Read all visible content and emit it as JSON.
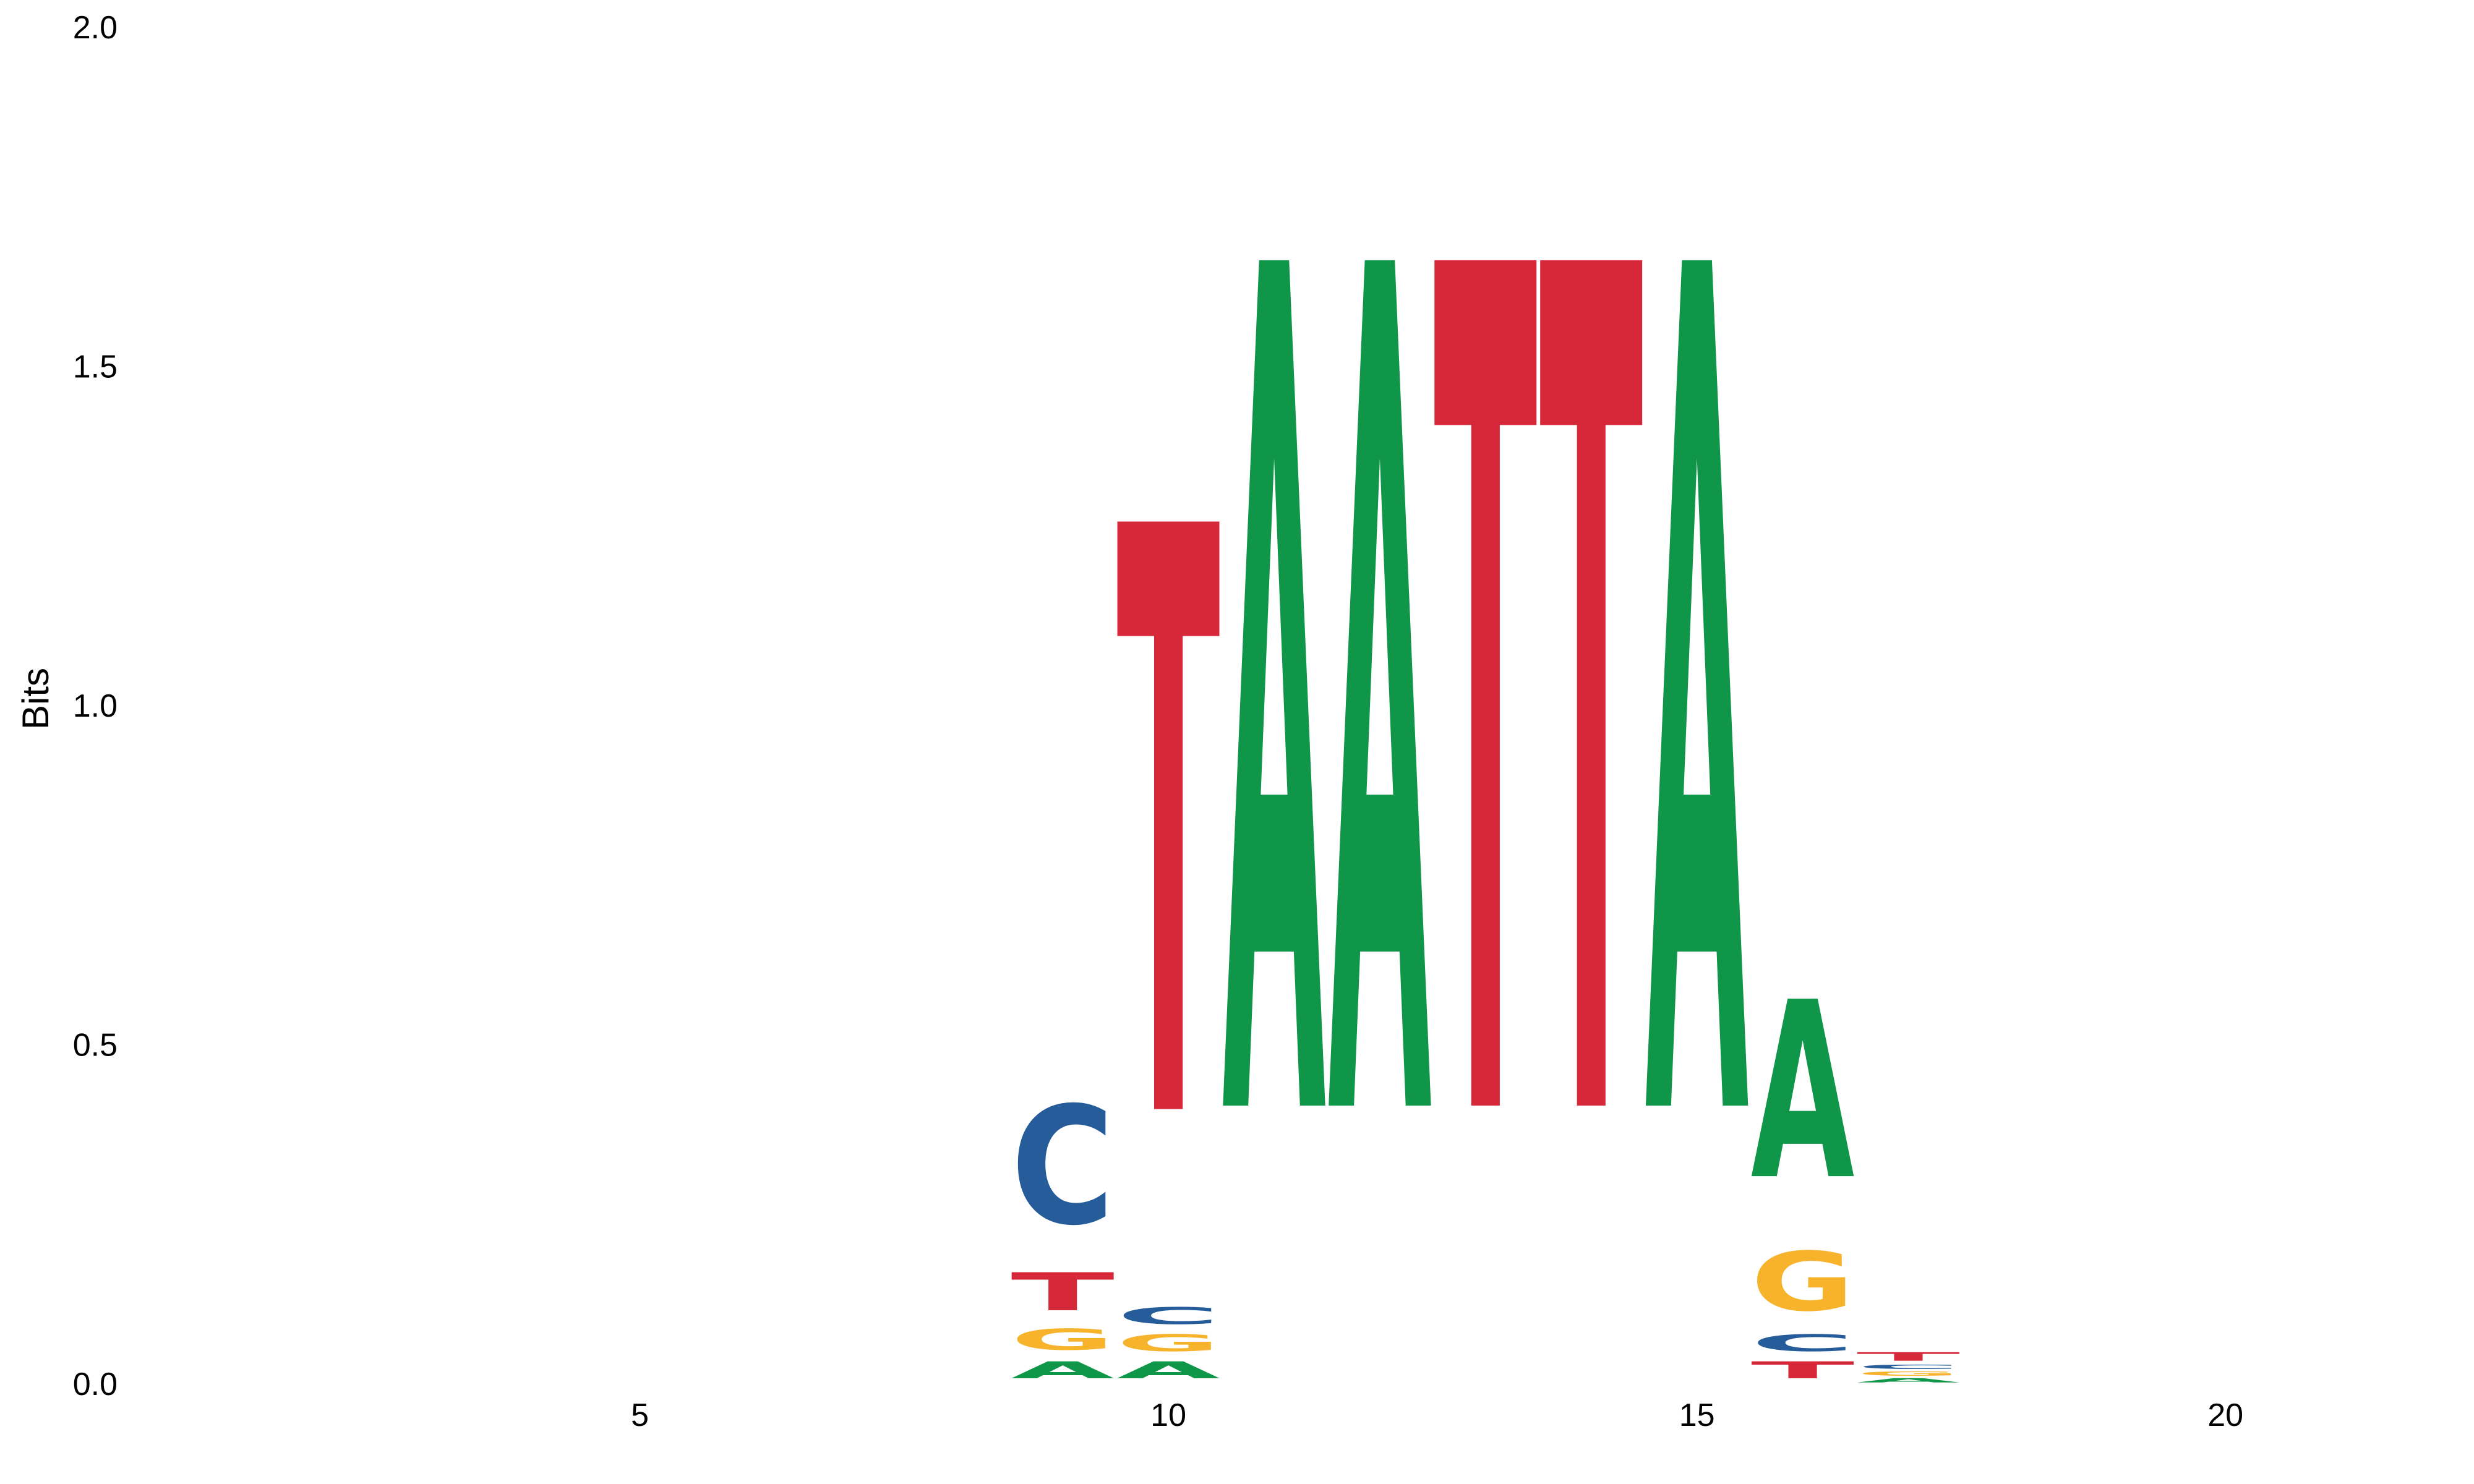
{
  "chart_data": {
    "type": "sequence-logo",
    "ylabel": "Bits",
    "ylim": [
      0,
      2
    ],
    "yticks": [
      "0.0",
      "0.5",
      "1.0",
      "1.5",
      "2.0"
    ],
    "xlim": [
      0,
      22
    ],
    "xticks": [
      "5",
      "10",
      "15",
      "20"
    ],
    "xtick_values": [
      5,
      10,
      15,
      20
    ],
    "ytick_values": [
      0,
      0.5,
      1.0,
      1.5,
      2.0
    ],
    "colors": {
      "A": "#109648",
      "C": "#255C99",
      "G": "#F7B32B",
      "T": "#D62839"
    },
    "positions": [
      {
        "pos": 9,
        "stack": [
          {
            "letter": "A",
            "bits": 0.04
          },
          {
            "letter": "G",
            "bits": 0.05
          },
          {
            "letter": "T",
            "bits": 0.09
          },
          {
            "letter": "C",
            "bits": 0.28
          }
        ]
      },
      {
        "pos": 10,
        "stack": [
          {
            "letter": "A",
            "bits": 0.04
          },
          {
            "letter": "G",
            "bits": 0.04
          },
          {
            "letter": "C",
            "bits": 0.04
          },
          {
            "letter": "T",
            "bits": 1.39
          }
        ]
      },
      {
        "pos": 11,
        "stack": [
          {
            "letter": "A",
            "bits": 2.0
          }
        ]
      },
      {
        "pos": 12,
        "stack": [
          {
            "letter": "A",
            "bits": 2.0
          }
        ]
      },
      {
        "pos": 13,
        "stack": [
          {
            "letter": "T",
            "bits": 2.0
          }
        ]
      },
      {
        "pos": 14,
        "stack": [
          {
            "letter": "T",
            "bits": 2.0
          }
        ]
      },
      {
        "pos": 15,
        "stack": [
          {
            "letter": "A",
            "bits": 2.0
          }
        ]
      },
      {
        "pos": 16,
        "stack": [
          {
            "letter": "T",
            "bits": 0.04
          },
          {
            "letter": "C",
            "bits": 0.04
          },
          {
            "letter": "G",
            "bits": 0.14
          },
          {
            "letter": "A",
            "bits": 0.42
          }
        ]
      },
      {
        "pos": 17,
        "stack": [
          {
            "letter": "A",
            "bits": 0.01
          },
          {
            "letter": "G",
            "bits": 0.01
          },
          {
            "letter": "C",
            "bits": 0.01
          },
          {
            "letter": "T",
            "bits": 0.02
          }
        ]
      }
    ]
  }
}
